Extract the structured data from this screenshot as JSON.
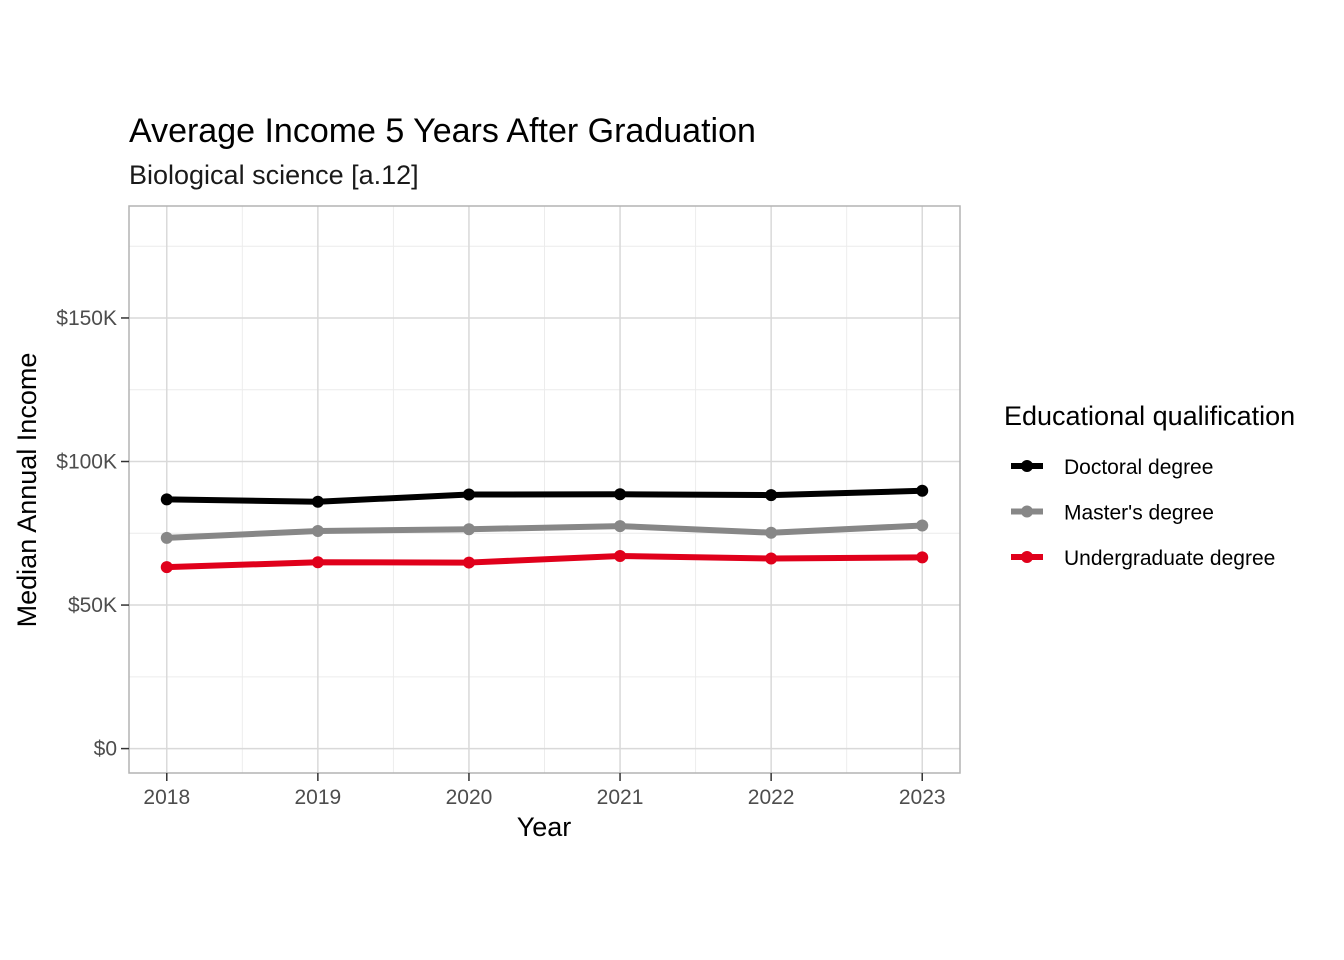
{
  "chart_data": {
    "type": "line",
    "title": "Average Income 5 Years After Graduation",
    "subtitle": "Biological science [a.12]",
    "xlabel": "Year",
    "ylabel": "Median Annual Income",
    "x": [
      2018,
      2019,
      2020,
      2021,
      2022,
      2023
    ],
    "x_tick_labels": [
      "2018",
      "2019",
      "2020",
      "2021",
      "2022",
      "2023"
    ],
    "xlim": [
      2017.75,
      2023.25
    ],
    "ylim": [
      -8500,
      189000
    ],
    "y_ticks": [
      0,
      50000,
      100000,
      150000
    ],
    "y_tick_labels": [
      "$0",
      "$50K",
      "$100K",
      "$150K"
    ],
    "y_minor_ticks": [
      25000,
      75000,
      125000,
      175000
    ],
    "grid": true,
    "legend": {
      "title": "Educational qualification",
      "position": "right"
    },
    "series": [
      {
        "name": "Doctoral degree",
        "color": "#000000",
        "values": [
          86800,
          86000,
          88500,
          88600,
          88300,
          89800
        ]
      },
      {
        "name": "Master's degree",
        "color": "#878787",
        "values": [
          73400,
          75800,
          76400,
          77500,
          75200,
          77700
        ]
      },
      {
        "name": "Undergraduate degree",
        "color": "#e0001b",
        "values": [
          63200,
          64900,
          64800,
          67100,
          66200,
          66600
        ]
      }
    ]
  }
}
